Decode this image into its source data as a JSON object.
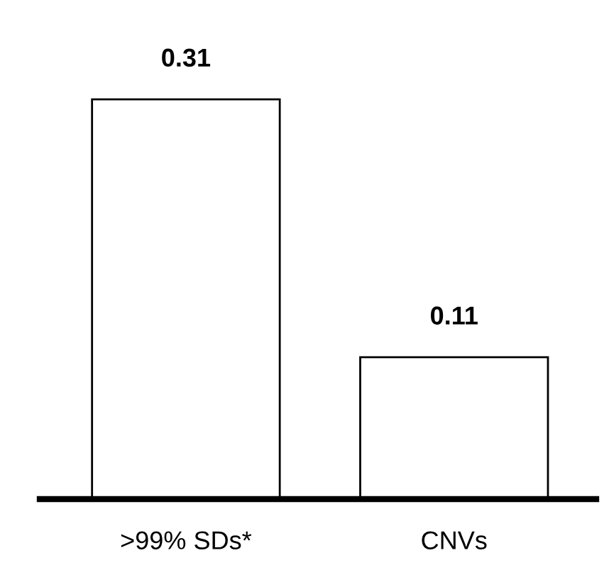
{
  "chart_data": {
    "type": "bar",
    "categories": [
      ">99% SDs*",
      "CNVs"
    ],
    "values": [
      0.31,
      0.11
    ],
    "color": "#ffffff",
    "data_labels": true,
    "grid": false,
    "legend": false
  }
}
